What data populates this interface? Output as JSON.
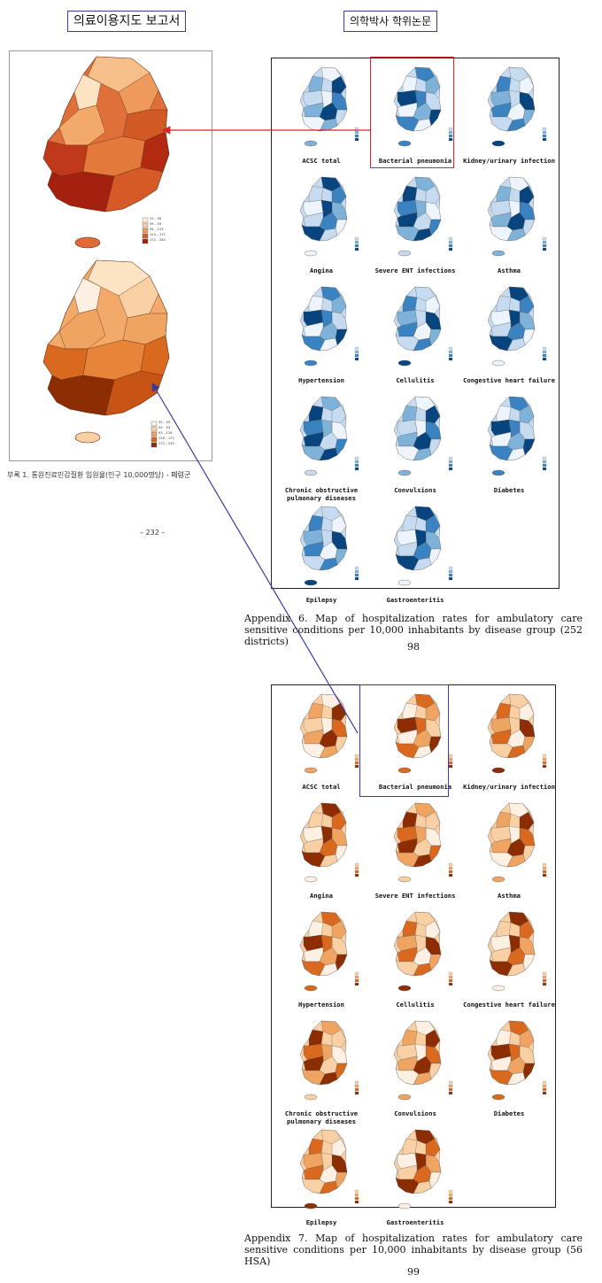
{
  "header": {
    "left_title": "의료이용지도 보고서",
    "right_title": "의학박사 학위논문"
  },
  "left_report": {
    "legend_top": [
      "22 – 58",
      "59 – 93",
      "94 – 123",
      "124 – 171",
      "172 – 263"
    ],
    "legend_bottom": [
      "33 – 59",
      "59 – 93",
      "93 – 126",
      "126 – 172",
      "172 – 245"
    ],
    "caption": "부록 1. 통원진료민감질환 입원율(인구 10,000명당) - 폐렴군",
    "page": "– 232 –"
  },
  "appendix6": {
    "panels": [
      "ACSC total",
      "Bacterial pneumonia",
      "Kidney/urinary infection",
      "Angina",
      "Severe ENT infections",
      "Asthma",
      "Hypertension",
      "Cellulitis",
      "Congestive heart failure",
      "Chronic obstructive pulmonary diseases",
      "Convulsions",
      "Diabetes",
      "Epilepsy",
      "Gastroenteritis"
    ],
    "caption": "Appendix 6. Map of hospitalization rates for ambulatory care sensitive conditions per 10,000 inhabitants by disease group (252 districts)",
    "page": "98",
    "colors": [
      "#eef4fb",
      "#c6dbef",
      "#7fb2d8",
      "#3a82c0",
      "#08457e"
    ]
  },
  "appendix7": {
    "panels": [
      "ACSC total",
      "Bacterial pneumonia",
      "Kidney/urinary infection",
      "Angina",
      "Severe ENT infections",
      "Asthma",
      "Hypertension",
      "Cellulitis",
      "Congestive heart failure",
      "Chronic obstructive pulmonary diseases",
      "Convulsions",
      "Diabetes",
      "Epilepsy",
      "Gastroenteritis"
    ],
    "caption": "Appendix 7. Map of hospitalization rates for ambulatory care sensitive conditions per 10,000 inhabitants by disease group (56 HSA)",
    "page": "99",
    "colors": [
      "#fdf0e2",
      "#f9cfa4",
      "#f0a461",
      "#d9691f",
      "#8c2d04"
    ]
  },
  "highlight_colors": {
    "red": "#d62728",
    "blue": "#3a3aa0"
  }
}
